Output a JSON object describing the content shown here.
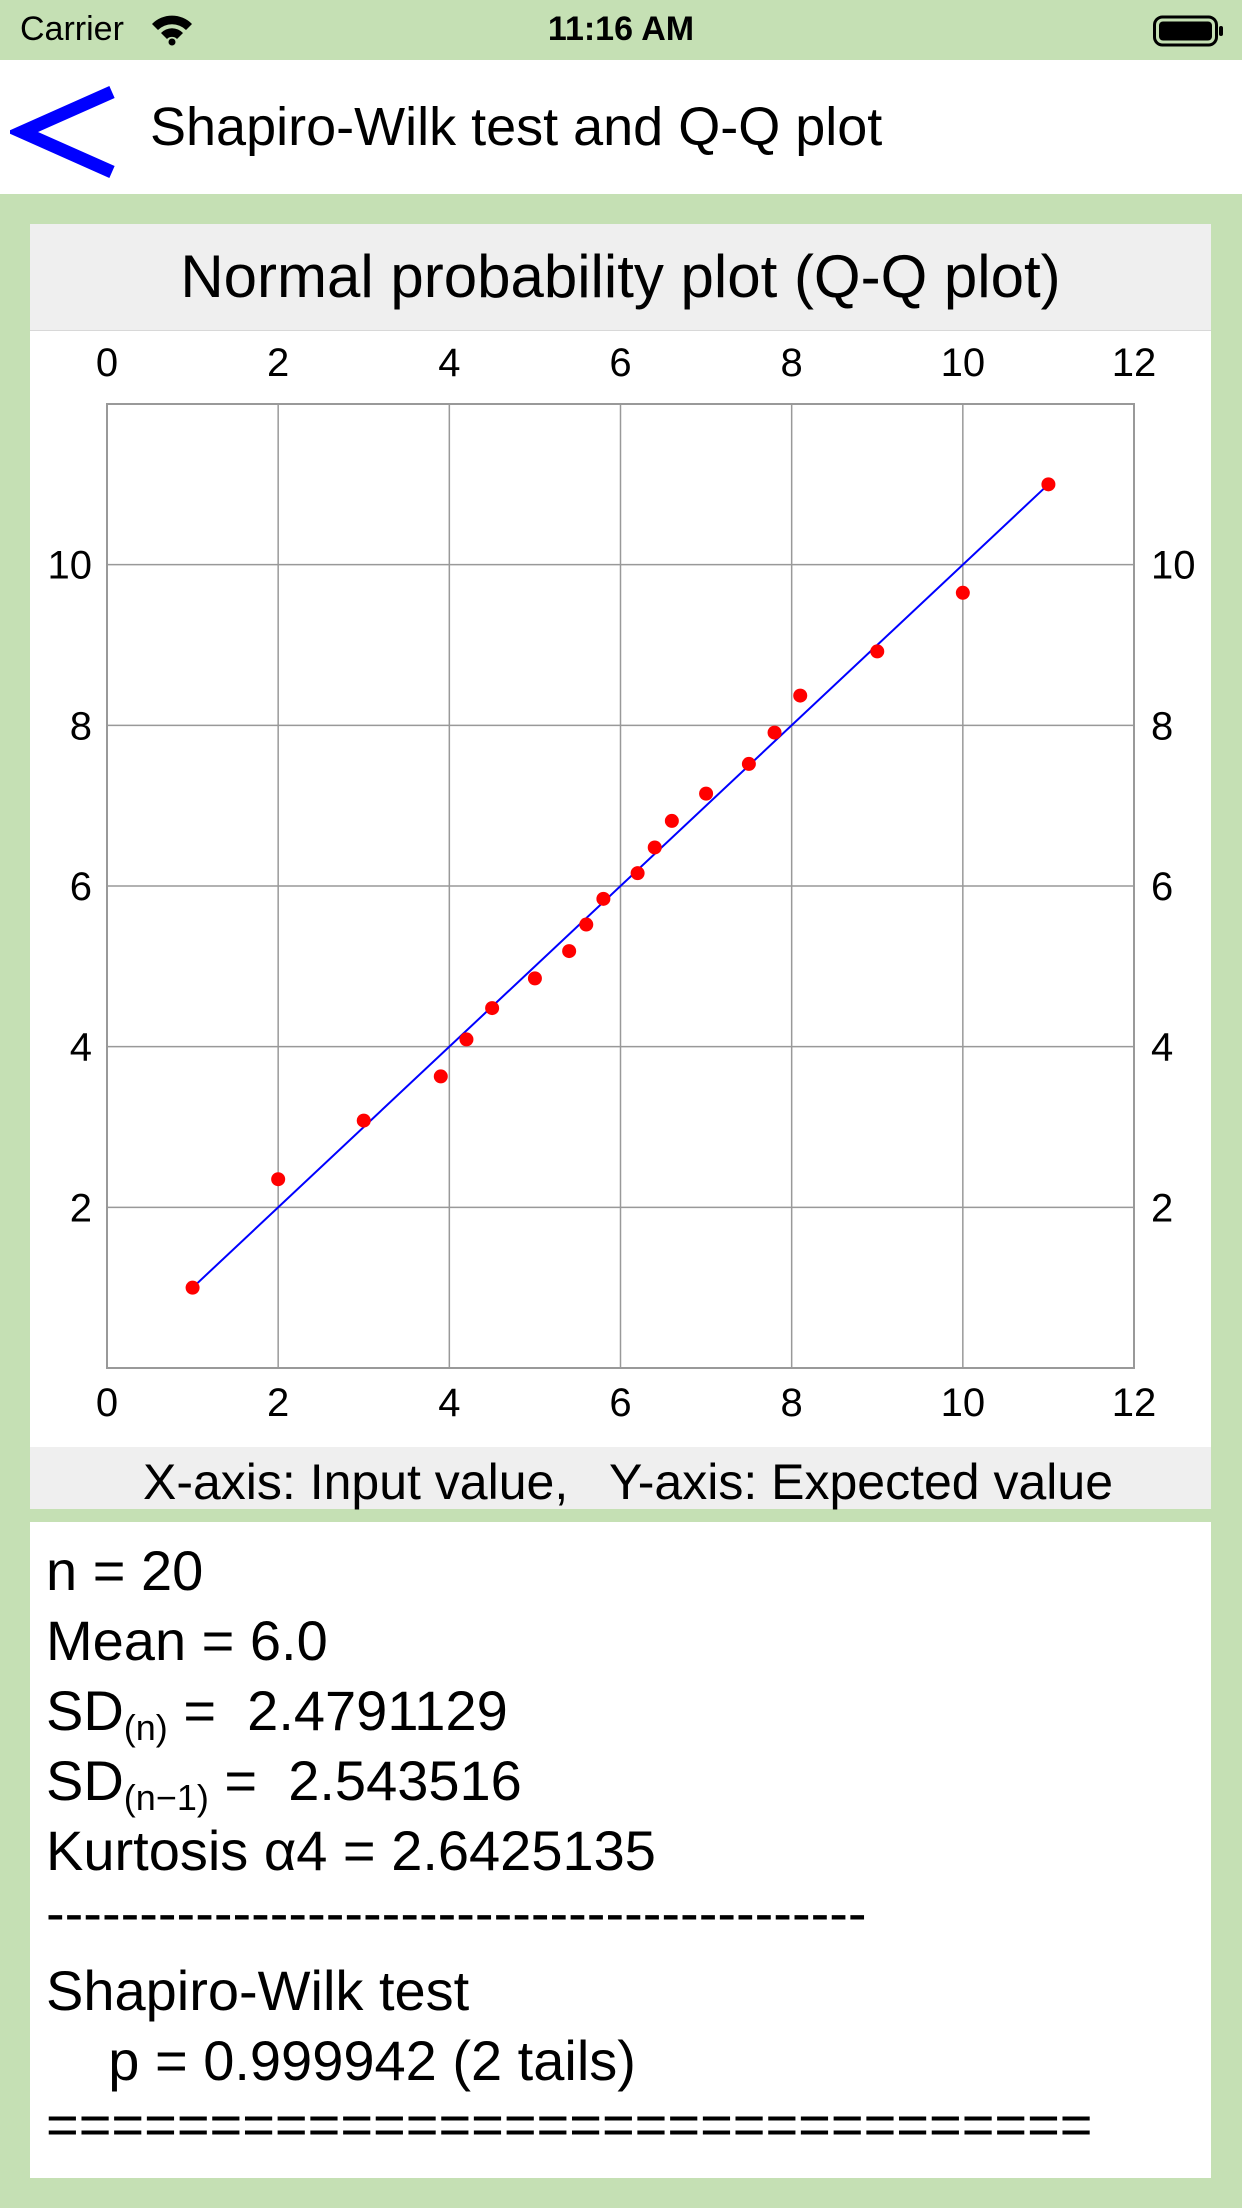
{
  "status_bar": {
    "carrier": "Carrier",
    "time": "11:16 AM"
  },
  "nav": {
    "back_icon": "chevron-left-icon",
    "title": "Shapiro-Wilk test and Q-Q plot"
  },
  "colors": {
    "background": "#c5e0b4",
    "back_arrow": "#0000ff",
    "points": "#ff0000",
    "fit_line": "#0000ff",
    "grid": "#999999"
  },
  "chart_data": {
    "type": "scatter",
    "title": "Normal probability plot (Q-Q plot)",
    "xlabel": "X-axis: Input value,   Y-axis: Expected value",
    "xlim": [
      0,
      12
    ],
    "ylim": [
      0,
      12
    ],
    "x_ticks": [
      "0",
      "2",
      "4",
      "6",
      "8",
      "10",
      "12"
    ],
    "y_ticks": [
      "2",
      "4",
      "6",
      "8",
      "10"
    ],
    "grid": true,
    "points": [
      {
        "x": 1.0,
        "y": 1.0
      },
      {
        "x": 2.0,
        "y": 2.35
      },
      {
        "x": 3.0,
        "y": 3.08
      },
      {
        "x": 3.9,
        "y": 3.63
      },
      {
        "x": 4.2,
        "y": 4.09
      },
      {
        "x": 4.5,
        "y": 4.48
      },
      {
        "x": 5.0,
        "y": 4.85
      },
      {
        "x": 5.4,
        "y": 5.19
      },
      {
        "x": 5.6,
        "y": 5.52
      },
      {
        "x": 5.8,
        "y": 5.84
      },
      {
        "x": 6.2,
        "y": 6.16
      },
      {
        "x": 6.4,
        "y": 6.48
      },
      {
        "x": 6.6,
        "y": 6.81
      },
      {
        "x": 7.0,
        "y": 7.15
      },
      {
        "x": 7.5,
        "y": 7.52
      },
      {
        "x": 7.8,
        "y": 7.91
      },
      {
        "x": 8.1,
        "y": 8.37
      },
      {
        "x": 9.0,
        "y": 8.92
      },
      {
        "x": 10.0,
        "y": 9.65
      },
      {
        "x": 11.0,
        "y": 11.0
      }
    ],
    "fit_line": {
      "x": [
        1,
        11
      ],
      "y": [
        1,
        11
      ]
    }
  },
  "results": {
    "n": "n = 20",
    "mean": "Mean = 6.0",
    "sd_n_prefix": "SD",
    "sd_n_sub": "(n)",
    "sd_n_value": " =  2.4791129",
    "sd_n1_prefix": "SD",
    "sd_n1_sub": "(n−1)",
    "sd_n1_value": " =  2.543516",
    "kurtosis": "Kurtosis α4 = 2.6425135",
    "separator": "--------------------------------------------",
    "test_name": "Shapiro-Wilk test",
    "p_value": "    p = 0.999942 (2 tails)",
    "end_rule": "================================"
  }
}
